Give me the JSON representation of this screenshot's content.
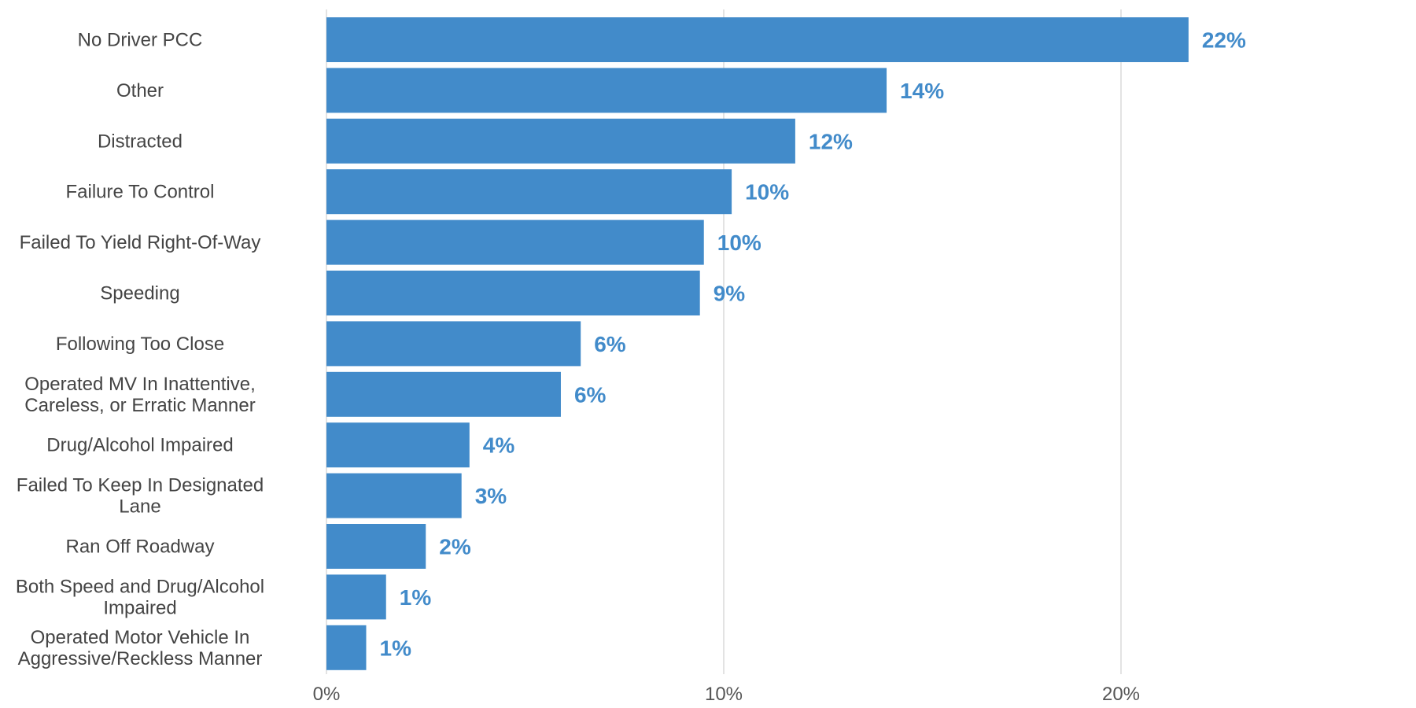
{
  "chart_data": {
    "type": "bar",
    "orientation": "horizontal",
    "categories": [
      [
        "No Driver PCC"
      ],
      [
        "Other"
      ],
      [
        "Distracted"
      ],
      [
        "Failure To Control"
      ],
      [
        "Failed To Yield Right-Of-Way"
      ],
      [
        "Speeding"
      ],
      [
        "Following Too Close"
      ],
      [
        "Operated MV In Inattentive,",
        "Careless, or Erratic Manner"
      ],
      [
        "Drug/Alcohol Impaired"
      ],
      [
        "Failed To Keep In Designated",
        "Lane"
      ],
      [
        "Ran Off Roadway"
      ],
      [
        "Both Speed and Drug/Alcohol",
        "Impaired"
      ],
      [
        "Operated Motor Vehicle In",
        "Aggressive/Reckless Manner"
      ]
    ],
    "values": [
      21.7,
      14.1,
      11.8,
      10.2,
      9.5,
      9.4,
      6.4,
      5.9,
      3.6,
      3.4,
      2.5,
      1.5,
      1.0
    ],
    "data_labels": [
      "22%",
      "14%",
      "12%",
      "10%",
      "10%",
      "9%",
      "6%",
      "6%",
      "4%",
      "3%",
      "2%",
      "1%",
      "1%"
    ],
    "x_ticks": [
      0,
      10,
      20
    ],
    "x_tick_labels": [
      "0%",
      "10%",
      "20%"
    ],
    "xlim": [
      0,
      27
    ],
    "grid": "vertical",
    "title": "",
    "xlabel": "",
    "ylabel": "",
    "colors": {
      "bar": "#428BCA",
      "label": "#428BCA",
      "grid": "#E3E3E3"
    }
  }
}
